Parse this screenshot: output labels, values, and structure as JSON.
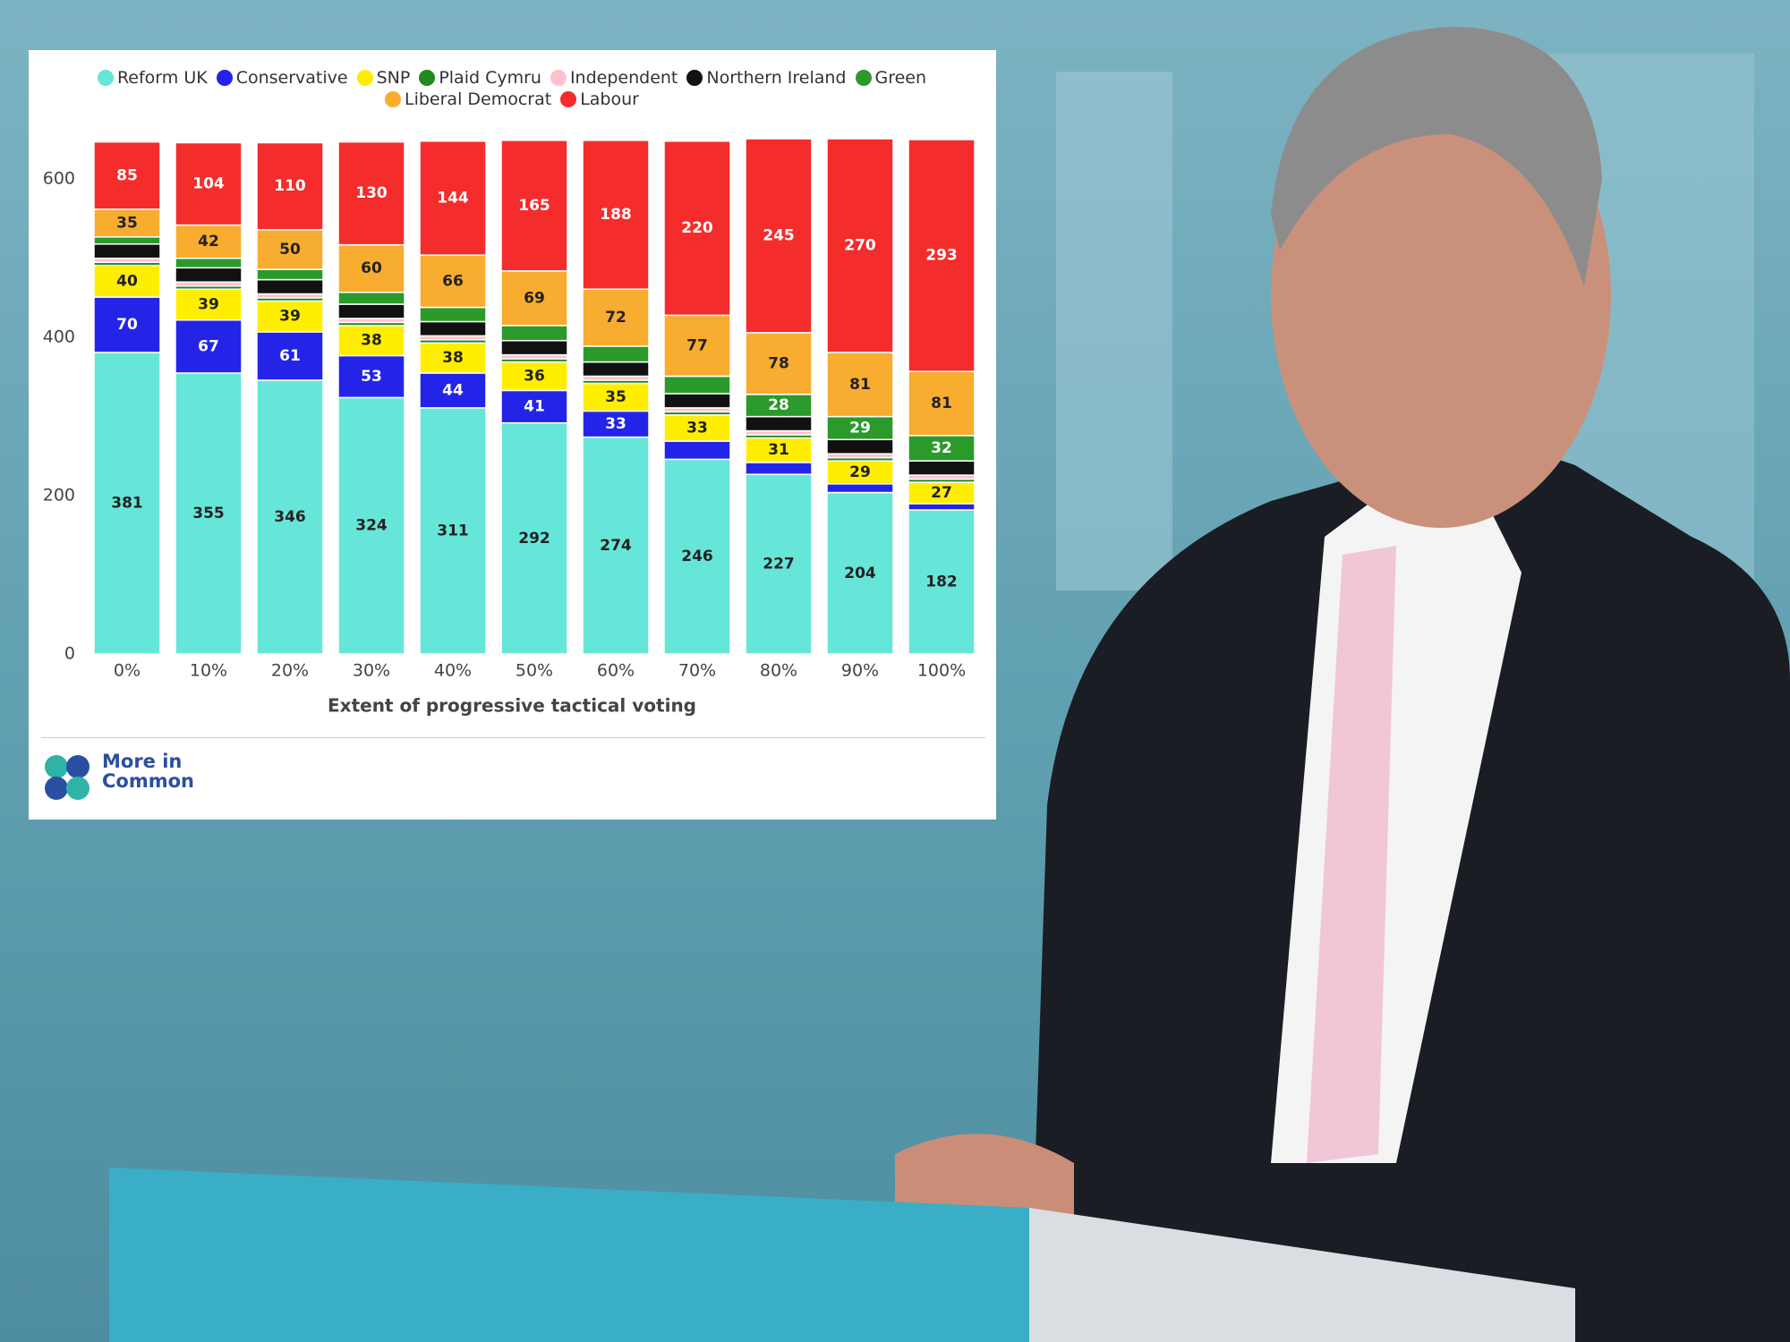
{
  "chart_data": {
    "type": "stacked_bar",
    "x_label": "Extent of progressive tactical voting",
    "categories": [
      "0%",
      "10%",
      "20%",
      "30%",
      "40%",
      "50%",
      "60%",
      "70%",
      "80%",
      "90%",
      "100%"
    ],
    "series": [
      {
        "name": "Reform UK",
        "color": "#66e6d8",
        "values": [
          381,
          355,
          346,
          324,
          311,
          292,
          274,
          246,
          227,
          204,
          182
        ]
      },
      {
        "name": "Conservative",
        "color": "#2424e8",
        "values": [
          70,
          67,
          61,
          53,
          44,
          41,
          33,
          23,
          15,
          11,
          8
        ]
      },
      {
        "name": "SNP",
        "color": "#ffee00",
        "values": [
          40,
          39,
          39,
          38,
          38,
          36,
          35,
          33,
          31,
          29,
          27
        ]
      },
      {
        "name": "Plaid Cymru",
        "color": "#1f8a1f",
        "values": [
          4,
          4,
          4,
          4,
          4,
          4,
          4,
          4,
          4,
          4,
          4
        ]
      },
      {
        "name": "Independent",
        "color": "#ffc0cb",
        "values": [
          5,
          5,
          5,
          5,
          5,
          5,
          5,
          5,
          5,
          5,
          5
        ]
      },
      {
        "name": "Northern Ireland",
        "color": "#111111",
        "values": [
          18,
          18,
          18,
          18,
          18,
          18,
          18,
          18,
          18,
          18,
          18
        ]
      },
      {
        "name": "Green",
        "color": "#2a9a2a",
        "values": [
          9,
          12,
          13,
          15,
          18,
          19,
          20,
          22,
          28,
          29,
          32
        ]
      },
      {
        "name": "Liberal Democrat",
        "color": "#f8ac30",
        "values": [
          35,
          42,
          50,
          60,
          66,
          69,
          72,
          77,
          78,
          81,
          81
        ]
      },
      {
        "name": "Labour",
        "color": "#f42c2c",
        "values": [
          85,
          104,
          110,
          130,
          144,
          165,
          188,
          220,
          245,
          270,
          293
        ]
      }
    ],
    "ylim": [
      0,
      650
    ],
    "yticks": [
      0,
      200,
      400,
      600
    ],
    "grid": false,
    "legend": "top"
  },
  "brand": "More in Common"
}
